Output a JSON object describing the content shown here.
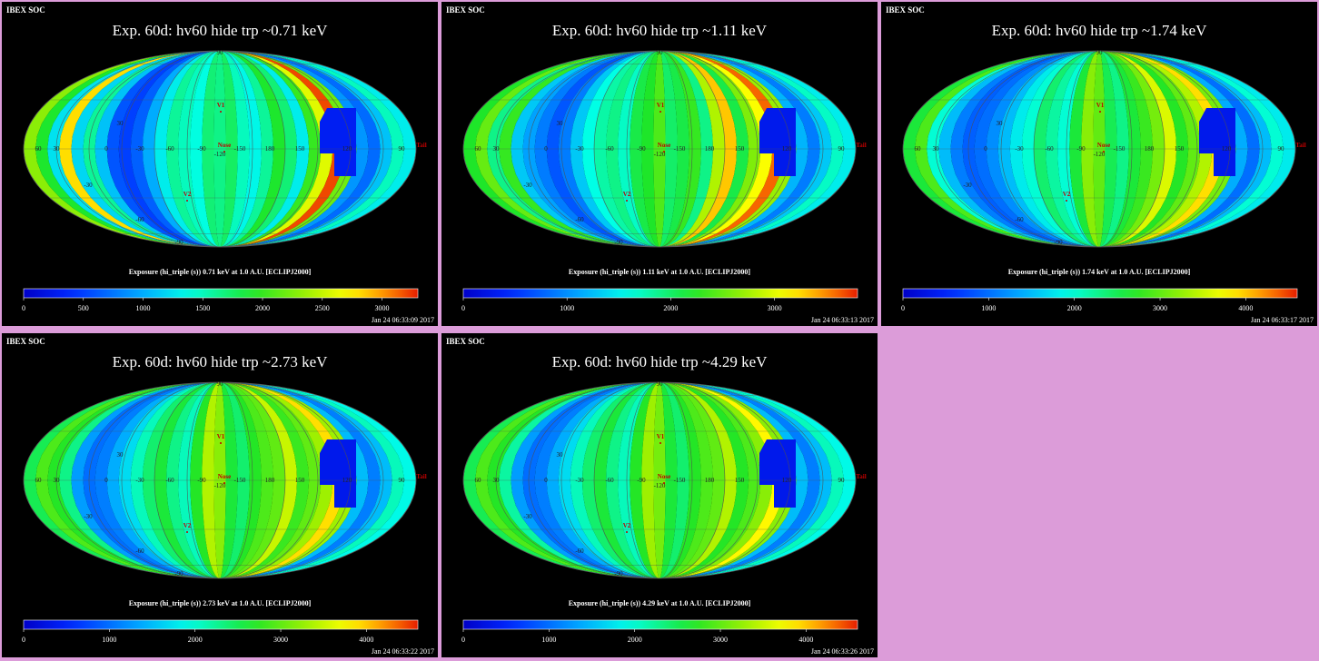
{
  "chart_data": [
    {
      "type": "heatmap",
      "header": "IBEX SOC",
      "title": "Exp.   60d: hv60 hide trp ~0.71 keV",
      "caption": "Exposure (hi_triple (s))  0.71 keV at 1.0 A.U. [ECLIPJ2000]",
      "timestamp": "Jan 24 06:33:09 2017",
      "colorbar": {
        "min": 0,
        "max": 3300,
        "ticks": [
          0,
          500,
          1000,
          1500,
          2000,
          2500,
          3000
        ]
      },
      "longitude_labels": [
        "60",
        "30",
        "0",
        "-30",
        "-60",
        "-90",
        "-120",
        "-150",
        "180",
        "150",
        "120",
        "90"
      ],
      "latitude_labels": [
        "30",
        "-30",
        "-60",
        "90",
        "-90"
      ],
      "markers": [
        {
          "label": "V1",
          "lon": -105,
          "lat": 34
        },
        {
          "label": "Nose",
          "lon": -105,
          "lat": 5
        },
        {
          "label": "V2",
          "lon": -75,
          "lat": -32
        },
        {
          "label": "Tail",
          "lon": 75,
          "lat": -5
        }
      ],
      "bands": [
        2300,
        1900,
        1250,
        2800,
        1200,
        1600,
        1100,
        600,
        500,
        650,
        1000,
        1300,
        1600,
        1500,
        1400,
        1700,
        1650,
        1750,
        1500,
        1350,
        1600,
        1900,
        1700,
        1300,
        2000,
        2600,
        3200,
        2200,
        900,
        700,
        1100,
        1500,
        1300
      ],
      "hole": 300
    },
    {
      "type": "heatmap",
      "header": "IBEX SOC",
      "title": "Exp.   60d: hv60 hide trp ~1.11 keV",
      "caption": "Exposure (hi_triple (s))  1.11 keV at 1.0 A.U. [ECLIPJ2000]",
      "timestamp": "Jan 24 06:33:13 2017",
      "colorbar": {
        "min": 0,
        "max": 3800,
        "ticks": [
          0,
          1000,
          2000,
          3000
        ]
      },
      "longitude_labels": [
        "60",
        "30",
        "0",
        "-30",
        "-60",
        "-90",
        "-120",
        "-150",
        "180",
        "150",
        "120",
        "90"
      ],
      "latitude_labels": [
        "30",
        "-30",
        "-60",
        "90",
        "-90"
      ],
      "markers": [
        {
          "label": "V1",
          "lon": -105,
          "lat": 34
        },
        {
          "label": "Nose",
          "lon": -105,
          "lat": 5
        },
        {
          "label": "V2",
          "lon": -75,
          "lat": -32
        },
        {
          "label": "Tail",
          "lon": 75,
          "lat": -5
        }
      ],
      "bands": [
        2200,
        2500,
        1900,
        2300,
        1300,
        1100,
        900,
        700,
        900,
        1300,
        1600,
        1800,
        1900,
        1700,
        2100,
        2200,
        2400,
        2000,
        2100,
        2300,
        1900,
        2800,
        3300,
        2100,
        2600,
        3100,
        3600,
        2700,
        1200,
        900,
        1300,
        1700,
        1500
      ],
      "hole": 300
    },
    {
      "type": "heatmap",
      "header": "IBEX SOC",
      "title": "Exp.   60d: hv60 hide trp ~1.74 keV",
      "caption": "Exposure (hi_triple (s))  1.74 keV at 1.0 A.U. [ECLIPJ2000]",
      "timestamp": "Jan 24 06:33:17 2017",
      "colorbar": {
        "min": 0,
        "max": 4600,
        "ticks": [
          0,
          1000,
          2000,
          3000,
          4000
        ]
      },
      "longitude_labels": [
        "60",
        "30",
        "0",
        "-30",
        "-60",
        "-90",
        "-120",
        "-150",
        "180",
        "150",
        "120",
        "90"
      ],
      "latitude_labels": [
        "30",
        "-30",
        "-60",
        "90",
        "-90"
      ],
      "markers": [
        {
          "label": "V1",
          "lon": -105,
          "lat": 34
        },
        {
          "label": "Nose",
          "lon": -105,
          "lat": 5
        },
        {
          "label": "V2",
          "lon": -75,
          "lat": -32
        },
        {
          "label": "Tail",
          "lon": 75,
          "lat": -5
        }
      ],
      "bands": [
        2600,
        2900,
        2000,
        1500,
        1100,
        900,
        1000,
        1200,
        1500,
        1800,
        2000,
        2400,
        2200,
        2000,
        2600,
        3200,
        3000,
        2500,
        2300,
        2600,
        2800,
        3100,
        3600,
        2700,
        3000,
        3400,
        3900,
        3100,
        1400,
        1000,
        1500,
        2000,
        1800
      ],
      "hole": 350
    },
    {
      "type": "heatmap",
      "header": "IBEX SOC",
      "title": "Exp.   60d: hv60 hide trp ~2.73 keV",
      "caption": "Exposure (hi_triple (s))  2.73 keV at 1.0 A.U. [ECLIPJ2000]",
      "timestamp": "Jan 24 06:33:22 2017",
      "colorbar": {
        "min": 0,
        "max": 4600,
        "ticks": [
          0,
          1000,
          2000,
          3000,
          4000
        ]
      },
      "longitude_labels": [
        "60",
        "30",
        "0",
        "-30",
        "-60",
        "-90",
        "-120",
        "-150",
        "180",
        "150",
        "120",
        "90"
      ],
      "latitude_labels": [
        "30",
        "-30",
        "-60",
        "90",
        "-90"
      ],
      "markers": [
        {
          "label": "V1",
          "lon": -105,
          "lat": 34
        },
        {
          "label": "Nose",
          "lon": -105,
          "lat": 5
        },
        {
          "label": "V2",
          "lon": -75,
          "lat": -32
        },
        {
          "label": "Tail",
          "lon": 75,
          "lat": -5
        }
      ],
      "bands": [
        2500,
        2900,
        2700,
        2300,
        1300,
        1000,
        1100,
        1400,
        1700,
        2100,
        2400,
        2600,
        2300,
        2100,
        2700,
        3400,
        3200,
        2600,
        2400,
        2700,
        2900,
        3000,
        3500,
        2800,
        3000,
        3300,
        3900,
        3300,
        1500,
        1100,
        1500,
        2100,
        1900
      ],
      "hole": 350
    },
    {
      "type": "heatmap",
      "header": "IBEX SOC",
      "title": "Exp.   60d: hv60 hide trp ~4.29 keV",
      "caption": "Exposure (hi_triple (s))  4.29 keV at 1.0 A.U. [ECLIPJ2000]",
      "timestamp": "Jan 24 06:33:26 2017",
      "colorbar": {
        "min": 0,
        "max": 4600,
        "ticks": [
          0,
          1000,
          2000,
          3000,
          4000
        ]
      },
      "longitude_labels": [
        "60",
        "30",
        "0",
        "-30",
        "-60",
        "-90",
        "-120",
        "-150",
        "180",
        "150",
        "120",
        "90"
      ],
      "latitude_labels": [
        "30",
        "-30",
        "-60",
        "90",
        "-90"
      ],
      "markers": [
        {
          "label": "V1",
          "lon": -105,
          "lat": 34
        },
        {
          "label": "Nose",
          "lon": -105,
          "lat": 5
        },
        {
          "label": "V2",
          "lon": -75,
          "lat": -32
        },
        {
          "label": "Tail",
          "lon": 75,
          "lat": -5
        }
      ],
      "bands": [
        2500,
        2900,
        2700,
        2200,
        1300,
        1000,
        1100,
        1400,
        1700,
        2100,
        2400,
        2600,
        2300,
        2100,
        2700,
        3300,
        3100,
        2600,
        2400,
        2700,
        2900,
        3000,
        3400,
        2700,
        2900,
        3200,
        3800,
        3200,
        1500,
        1100,
        1500,
        2100,
        1900
      ],
      "hole": 350
    }
  ]
}
